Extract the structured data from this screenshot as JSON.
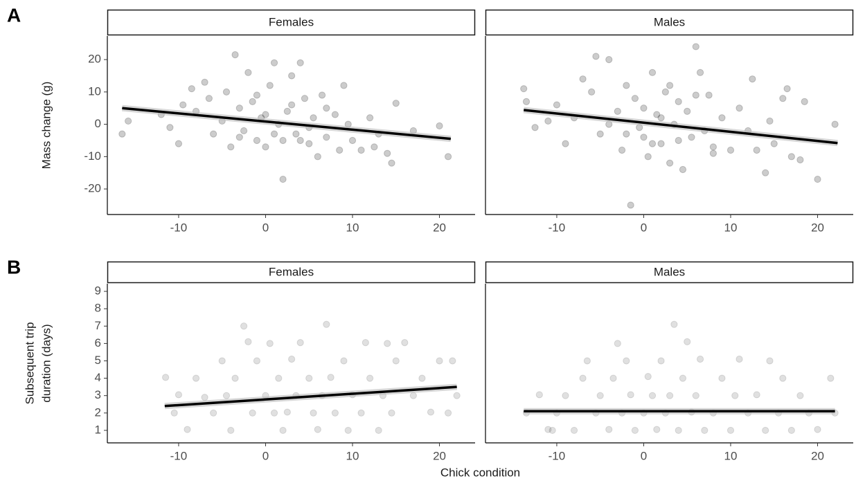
{
  "chart_data": [
    {
      "type": "scatter",
      "panel_label": "A",
      "strip": "Females",
      "ylabel": [
        "Mass change (g)"
      ],
      "xlim": [
        -18.2,
        24.1
      ],
      "ylim": [
        -27.9,
        27.3
      ],
      "xticks": [
        -10,
        0,
        10,
        20
      ],
      "yticks": [
        -20,
        -10,
        0,
        10,
        20
      ],
      "point_color": "#000000",
      "point_opacity": 0.2,
      "line_color": "#000000",
      "x": [
        -16.5,
        -15.8,
        -12,
        -11,
        -10,
        -9.5,
        -8.5,
        -8,
        -7,
        -6.5,
        -6,
        -5,
        -4.5,
        -4,
        -3.5,
        -3,
        -2.5,
        -2,
        -1.5,
        -1,
        -0.5,
        0,
        0.5,
        1,
        1.5,
        2,
        2.5,
        3,
        3.5,
        4,
        4.5,
        5,
        5.5,
        6,
        6.5,
        7,
        8,
        8.5,
        9,
        9.5,
        10,
        11,
        12,
        12.5,
        13,
        14,
        14.5,
        15,
        17,
        20,
        21,
        2,
        -3,
        1,
        3,
        0,
        -1,
        5,
        7,
        4
      ],
      "y": [
        -3,
        1,
        3,
        -1,
        -6,
        6,
        11,
        4,
        13,
        8,
        -3,
        1,
        10,
        -7,
        21.5,
        5,
        -2,
        16,
        7,
        -5,
        2,
        -7,
        12,
        19,
        0,
        -5,
        4,
        15,
        -3,
        19,
        8,
        -6,
        2,
        -10,
        9,
        -4,
        3,
        -8,
        12,
        0,
        -5,
        -8,
        2,
        -7,
        -3,
        -9,
        -12,
        6.5,
        -2,
        -0.5,
        -10,
        -17,
        -4,
        -3,
        6,
        3,
        9,
        -1,
        5,
        -5
      ],
      "fit": {
        "x": [
          -16.5,
          21.3
        ],
        "y": [
          5,
          -4.5
        ]
      }
    },
    {
      "type": "scatter",
      "strip": "Males",
      "xlim": [
        -18.2,
        24.1
      ],
      "ylim": [
        -27.9,
        27.3
      ],
      "xticks": [
        -10,
        0,
        10,
        20
      ],
      "point_color": "#000000",
      "point_opacity": 0.2,
      "line_color": "#000000",
      "x": [
        -13.8,
        -13.5,
        -12.5,
        -11,
        -10,
        -9,
        -8,
        -7,
        -6,
        -5.5,
        -5,
        -4,
        -3,
        -2.5,
        -2,
        -1.5,
        -1,
        -0.5,
        0,
        0.5,
        1,
        1.5,
        2,
        2.5,
        3,
        3.5,
        4,
        4.5,
        5,
        5.5,
        6,
        6.5,
        7,
        7.5,
        8,
        9,
        10,
        11,
        12,
        12.5,
        13,
        14,
        14.5,
        15,
        16,
        16.5,
        17,
        18,
        18.5,
        20,
        22,
        -4,
        0,
        2,
        4,
        6,
        -2,
        1,
        8,
        3
      ],
      "y": [
        11,
        7,
        -1,
        1,
        6,
        -6,
        2,
        14,
        10,
        21,
        -3,
        20,
        4,
        -8,
        12,
        -25,
        8,
        -1,
        5,
        -10,
        16,
        3,
        -6,
        10,
        -12,
        0,
        7,
        -14,
        4,
        -4,
        24,
        16,
        -2,
        9,
        -7,
        2,
        -8,
        5,
        -2,
        14,
        -8,
        -15,
        1,
        -6,
        8,
        11,
        -10,
        -11,
        7,
        -17,
        0,
        0,
        -4,
        2,
        -5,
        9,
        -3,
        -6,
        -9,
        12
      ],
      "fit": {
        "x": [
          -13.8,
          22.3
        ],
        "y": [
          4.4,
          -5.8
        ]
      }
    },
    {
      "type": "scatter",
      "panel_label": "B",
      "strip": "Females",
      "ylabel": [
        "Subsequent trip",
        "duration (days)"
      ],
      "xlabel": "Chick condition",
      "xlim": [
        -18.2,
        24.1
      ],
      "ylim": [
        0.28,
        9.44
      ],
      "xticks": [
        -10,
        0,
        10,
        20
      ],
      "yticks": [
        1,
        2,
        3,
        4,
        5,
        6,
        7,
        8,
        9
      ],
      "point_color": "#000000",
      "point_opacity": 0.12,
      "line_color": "#000000",
      "x": [
        -11.5,
        -10.5,
        -10,
        -9,
        -8,
        -7,
        -6,
        -5,
        -4.5,
        -4,
        -3.5,
        -2.5,
        -2,
        -1.5,
        -1,
        0,
        0.5,
        1,
        1.5,
        2,
        2.5,
        3,
        3.5,
        4,
        5,
        5.5,
        6,
        6.5,
        7,
        7.5,
        8,
        9,
        9.5,
        10,
        11,
        11.5,
        12,
        13,
        13.5,
        14,
        14.5,
        15,
        16,
        17,
        18,
        19,
        20,
        21,
        21.5,
        22
      ],
      "y": [
        4.05,
        2.0,
        3.05,
        1.05,
        4.0,
        2.9,
        2.0,
        5.0,
        3.0,
        1.0,
        4.0,
        7.0,
        6.1,
        2.0,
        5.0,
        3.0,
        6.0,
        2.0,
        4.0,
        1.0,
        2.05,
        5.1,
        3.0,
        6.05,
        4.0,
        2.0,
        1.05,
        3.0,
        7.1,
        4.05,
        2.0,
        5.0,
        1.0,
        3.05,
        2.0,
        6.05,
        4.0,
        1.0,
        3.0,
        6.0,
        2.0,
        5.0,
        6.05,
        3.0,
        4.0,
        2.05,
        5.0,
        2.0,
        5.0,
        3.0
      ],
      "fit": {
        "x": [
          -11.6,
          22
        ],
        "y": [
          2.4,
          3.5
        ]
      }
    },
    {
      "type": "scatter",
      "strip": "Males",
      "xlim": [
        -18.2,
        24.1
      ],
      "ylim": [
        0.28,
        9.44
      ],
      "xticks": [
        -10,
        0,
        10,
        20
      ],
      "point_color": "#000000",
      "point_opacity": 0.12,
      "line_color": "#000000",
      "x": [
        -13.5,
        -12,
        -11,
        -10,
        -9,
        -8,
        -7,
        -6.5,
        -5.5,
        -5,
        -4,
        -3.5,
        -3,
        -2.5,
        -2,
        -1.5,
        -1,
        0,
        0.5,
        1,
        1.5,
        2,
        2.5,
        3,
        3.5,
        4,
        4.5,
        5,
        5.5,
        6,
        6.5,
        7,
        8,
        9,
        10,
        10.5,
        11,
        12,
        13,
        14,
        14.5,
        15.5,
        16,
        17,
        18,
        19,
        20,
        21.5,
        22,
        -10.5
      ],
      "y": [
        2.0,
        3.05,
        1.05,
        2.0,
        3.0,
        1.0,
        4.0,
        5.0,
        2.0,
        3.0,
        1.05,
        4.0,
        6.0,
        2.0,
        5.0,
        3.05,
        1.0,
        2.0,
        4.1,
        3.0,
        1.05,
        5.0,
        2.0,
        3.0,
        7.1,
        1.0,
        4.0,
        6.1,
        2.05,
        3.0,
        5.1,
        1.0,
        2.0,
        4.0,
        1.0,
        3.0,
        5.1,
        2.0,
        3.05,
        1.0,
        5.0,
        2.0,
        4.0,
        1.0,
        3.0,
        2.0,
        1.05,
        4.0,
        2.0,
        1.0
      ],
      "fit": {
        "x": [
          -13.8,
          22
        ],
        "y": [
          2.1,
          2.1
        ]
      }
    }
  ]
}
